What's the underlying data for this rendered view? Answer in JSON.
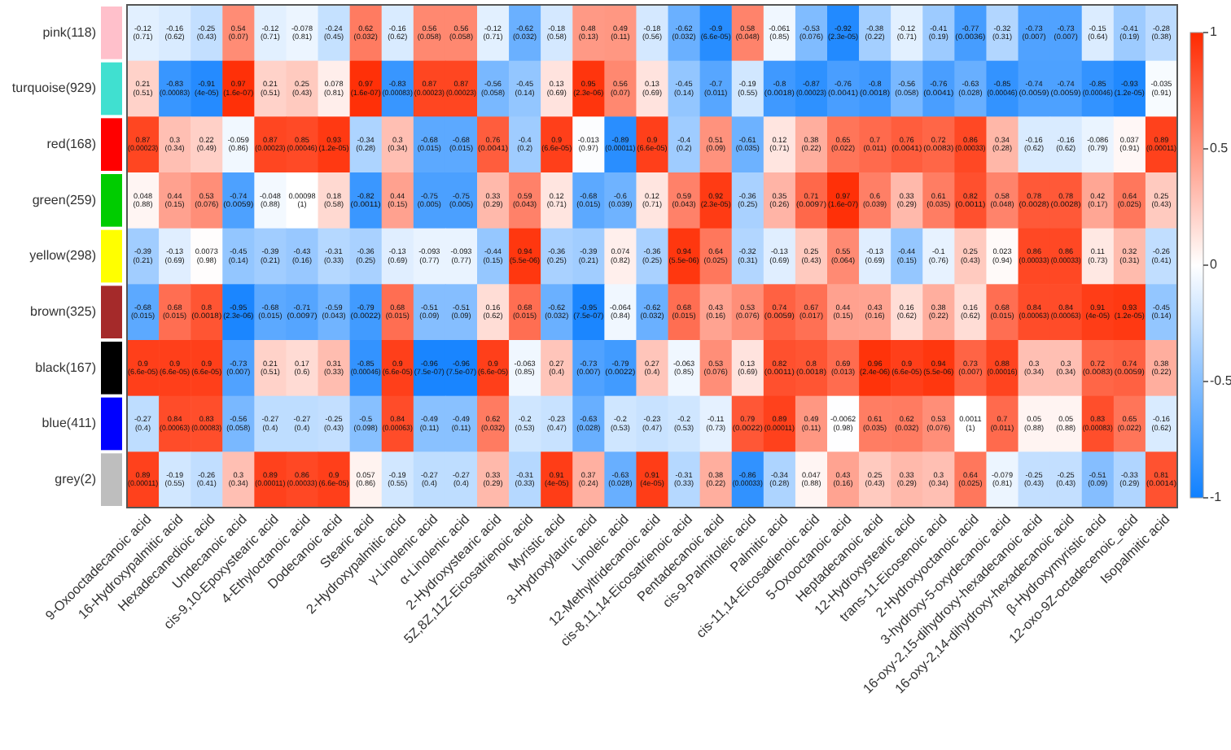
{
  "chart_data": {
    "type": "heatmap",
    "categories": [
      "9-Oxooctadecanoic acid",
      "16-Hydroxypalmitic acid",
      "Hexadecanedioic acid",
      "Undecanoic acid",
      "cis-9,10-Epoxystearic acid",
      "4-Ethyloctanoic acid",
      "Dodecanoic acid",
      "Stearic acid",
      "2-Hydroxypalmitic acid",
      "γ-Linolenic acid",
      "α-Linolenic acid",
      "2-Hydroxystearic acid",
      "5Z,8Z,11Z-Eicosatrienoic acid",
      "Myristic acid",
      "3-Hydroxylauric acid",
      "Linoleic acid",
      "12-Methyltridecanoic acid",
      "cis-8,11,14-Eicosatrienoic acid",
      "Pentadecanoic acid",
      "cis-9-Palmitoleic acid",
      "Palmitic acid",
      "cis-11,14-Eicosadienoic acid",
      "5-Oxooctanoic acid",
      "Heptadecanoic acid",
      "12-Hydroxystearic acid",
      "trans-11-Eicosenoic acid",
      "2-Hydroxyoctanoic acid",
      "3-hydroxy-5-oxydecanoic acid",
      "16-oxy-2,15-dihydroxy-hexadecanoic acid",
      "16-oxy-2,14-dihydroxy-hexadecanoic acid",
      "β-Hydroxymyristic acid",
      "12-oxo-9Z-octadecenoic_acid",
      "Isopalmitic acid"
    ],
    "y_categories": [
      "pink(118)",
      "turquoise(929)",
      "red(168)",
      "green(259)",
      "yellow(298)",
      "brown(325)",
      "black(167)",
      "blue(411)",
      "grey(2)"
    ],
    "cells": [
      [
        -0.12,
        -0.16,
        -0.25,
        0.54,
        -0.12,
        -0.078,
        -0.24,
        0.62,
        -0.16,
        0.56,
        0.56,
        -0.12,
        -0.62,
        -0.18,
        0.48,
        0.49,
        -0.18,
        -0.62,
        -0.9,
        0.58,
        -0.061,
        -0.53,
        -0.92,
        -0.38,
        -0.12,
        -0.41,
        -0.77,
        -0.32,
        -0.73,
        -0.73,
        -0.15,
        -0.41,
        -0.28
      ],
      [
        0.21,
        -0.83,
        -0.91,
        0.97,
        0.21,
        0.25,
        0.078,
        0.97,
        -0.83,
        0.87,
        0.87,
        -0.56,
        -0.45,
        0.13,
        0.95,
        0.56,
        0.13,
        -0.45,
        -0.7,
        -0.19,
        -0.8,
        -0.87,
        -0.76,
        -0.8,
        -0.56,
        -0.76,
        -0.63,
        -0.85,
        -0.74,
        -0.74,
        -0.85,
        -0.93,
        -0.035
      ],
      [
        0.87,
        0.3,
        0.22,
        -0.059,
        0.87,
        0.85,
        0.93,
        -0.34,
        0.3,
        -0.68,
        -0.68,
        0.76,
        -0.4,
        0.9,
        -0.013,
        -0.89,
        0.9,
        -0.4,
        0.51,
        -0.61,
        0.12,
        0.38,
        0.65,
        0.7,
        0.76,
        0.72,
        0.86,
        0.34,
        -0.16,
        -0.16,
        -0.086,
        0.037,
        0.89
      ],
      [
        0.048,
        0.44,
        0.53,
        -0.74,
        -0.048,
        0.00098,
        0.18,
        -0.82,
        0.44,
        -0.75,
        -0.75,
        0.33,
        0.59,
        0.12,
        -0.68,
        -0.6,
        0.12,
        0.59,
        0.92,
        -0.36,
        0.35,
        0.71,
        0.97,
        0.6,
        0.33,
        0.61,
        0.82,
        0.58,
        0.78,
        0.78,
        0.42,
        0.64,
        0.25
      ],
      [
        -0.39,
        -0.13,
        0.0073,
        -0.45,
        -0.39,
        -0.43,
        -0.31,
        -0.36,
        -0.13,
        -0.093,
        -0.093,
        -0.44,
        0.94,
        -0.36,
        -0.39,
        0.074,
        -0.36,
        0.94,
        0.64,
        -0.32,
        -0.13,
        0.25,
        0.55,
        -0.13,
        -0.44,
        -0.1,
        0.25,
        0.023,
        0.86,
        0.86,
        0.11,
        0.32,
        -0.26
      ],
      [
        -0.68,
        0.68,
        0.8,
        -0.95,
        -0.68,
        -0.71,
        -0.59,
        -0.79,
        0.68,
        -0.51,
        -0.51,
        0.16,
        0.68,
        -0.62,
        -0.95,
        -0.064,
        -0.62,
        0.68,
        0.43,
        0.53,
        0.74,
        0.67,
        0.44,
        0.43,
        0.16,
        0.38,
        0.16,
        0.68,
        0.84,
        0.84,
        0.91,
        0.93,
        -0.45
      ],
      [
        0.9,
        0.9,
        0.9,
        -0.73,
        0.21,
        0.17,
        0.31,
        -0.85,
        0.9,
        -0.96,
        -0.96,
        0.9,
        -0.063,
        0.27,
        -0.73,
        -0.79,
        0.27,
        -0.063,
        0.53,
        0.13,
        0.82,
        0.8,
        0.69,
        0.96,
        0.9,
        0.94,
        0.73,
        0.88,
        0.3,
        0.3,
        0.72,
        0.74,
        0.38
      ],
      [
        -0.27,
        0.84,
        0.83,
        -0.56,
        -0.27,
        -0.27,
        -0.25,
        -0.5,
        0.84,
        -0.49,
        -0.49,
        0.62,
        -0.2,
        -0.23,
        -0.63,
        -0.2,
        -0.23,
        -0.2,
        -0.11,
        0.79,
        0.89,
        0.49,
        -0.0062,
        0.61,
        0.62,
        0.53,
        0.0011,
        0.7,
        0.05,
        0.05,
        0.83,
        0.65,
        -0.16
      ],
      [
        0.89,
        -0.19,
        -0.26,
        0.3,
        0.89,
        0.86,
        0.9,
        0.057,
        -0.19,
        -0.27,
        -0.27,
        0.33,
        -0.31,
        0.91,
        0.37,
        -0.63,
        0.91,
        -0.31,
        0.38,
        -0.86,
        -0.34,
        0.047,
        0.43,
        0.25,
        0.33,
        0.3,
        0.64,
        -0.079,
        -0.25,
        -0.25,
        -0.51,
        -0.33,
        0.81
      ]
    ],
    "cell_labels": [
      [
        "-0.12\n(0.71)",
        "-0.16\n(0.62)",
        "-0.25\n(0.43)",
        "0.54\n(0.07)",
        "-0.12\n(0.71)",
        "-0.078\n(0.81)",
        "-0.24\n(0.45)",
        "0.62\n(0.032)",
        "-0.16\n(0.62)",
        "0.56\n(0.058)",
        "0.56\n(0.058)",
        "-0.12\n(0.71)",
        "-0.62\n(0.032)",
        "-0.18\n(0.58)",
        "0.48\n(0.13)",
        "0.49\n(0.11)",
        "-0.18\n(0.56)",
        "-0.62\n(0.032)",
        "-0.9\n(6.6e-05)",
        "0.58\n(0.048)",
        "-0.061\n(0.85)",
        "-0.53\n(0.076)",
        "-0.92\n(2.3e-05)",
        "-0.38\n(0.22)",
        "-0.12\n(0.71)",
        "-0.41\n(0.19)",
        "-0.77\n(0.0036)",
        "-0.32\n(0.31)",
        "-0.73\n(0.007)",
        "-0.73\n(0.007)",
        "-0.15\n(0.64)",
        "-0.41\n(0.19)",
        "-0.28\n(0.38)"
      ],
      [
        "0.21\n(0.51)",
        "-0.83\n(0.00083)",
        "-0.91\n(4e-05)",
        "0.97\n(1.6e-07)",
        "0.21\n(0.51)",
        "0.25\n(0.43)",
        "0.078\n(0.81)",
        "0.97\n(1.6e-07)",
        "-0.83\n(0.00083)",
        "0.87\n(0.00023)",
        "0.87\n(0.00023)",
        "-0.56\n(0.058)",
        "-0.45\n(0.14)",
        "0.13\n(0.69)",
        "0.95\n(2.3e-06)",
        "0.56\n(0.07)",
        "0.13\n(0.69)",
        "-0.45\n(0.14)",
        "-0.7\n(0.011)",
        "-0.19\n(0.55)",
        "-0.8\n(0.0018)",
        "-0.87\n(0.00023)",
        "-0.76\n(0.0041)",
        "-0.8\n(0.0018)",
        "-0.56\n(0.058)",
        "-0.76\n(0.0041)",
        "-0.63\n(0.028)",
        "-0.85\n(0.00046)",
        "-0.74\n(0.0059)",
        "-0.74\n(0.0059)",
        "-0.85\n(0.00046)",
        "-0.93\n(1.2e-05)",
        "-0.035\n(0.91)"
      ],
      [
        "0.87\n(0.00023)",
        "0.3\n(0.34)",
        "0.22\n(0.49)",
        "-0.059\n(0.86)",
        "0.87\n(0.00023)",
        "0.85\n(0.00046)",
        "0.93\n(1.2e-05)",
        "-0.34\n(0.28)",
        "0.3\n(0.34)",
        "-0.68\n(0.015)",
        "-0.68\n(0.015)",
        "0.76\n(0.0041)",
        "-0.4\n(0.2)",
        "0.9\n(6.6e-05)",
        "-0.013\n(0.97)",
        "-0.89\n(0.00011)",
        "0.9\n(6.6e-05)",
        "-0.4\n(0.2)",
        "0.51\n(0.09)",
        "-0.61\n(0.035)",
        "0.12\n(0.71)",
        "0.38\n(0.22)",
        "0.65\n(0.022)",
        "0.7\n(0.011)",
        "0.76\n(0.0041)",
        "0.72\n(0.0083)",
        "0.86\n(0.00033)",
        "0.34\n(0.28)",
        "-0.16\n(0.62)",
        "-0.16\n(0.62)",
        "-0.086\n(0.79)",
        "0.037\n(0.91)",
        "0.89\n(0.00011)"
      ],
      [
        "0.048\n(0.88)",
        "0.44\n(0.15)",
        "0.53\n(0.076)",
        "-0.74\n(0.0059)",
        "-0.048\n(0.88)",
        "0.00098\n(1)",
        "0.18\n(0.58)",
        "-0.82\n(0.0011)",
        "0.44\n(0.15)",
        "-0.75\n(0.005)",
        "-0.75\n(0.005)",
        "0.33\n(0.29)",
        "0.59\n(0.043)",
        "0.12\n(0.71)",
        "-0.68\n(0.015)",
        "-0.6\n(0.039)",
        "0.12\n(0.71)",
        "0.59\n(0.043)",
        "0.92\n(2.3e-05)",
        "-0.36\n(0.25)",
        "0.35\n(0.26)",
        "0.71\n(0.0097)",
        "0.97\n(1.6e-07)",
        "0.6\n(0.039)",
        "0.33\n(0.29)",
        "0.61\n(0.035)",
        "0.82\n(0.0011)",
        "0.58\n(0.048)",
        "0.78\n(0.0028)",
        "0.78\n(0.0028)",
        "0.42\n(0.17)",
        "0.64\n(0.025)",
        "0.25\n(0.43)"
      ],
      [
        "-0.39\n(0.21)",
        "-0.13\n(0.69)",
        "0.0073\n(0.98)",
        "-0.45\n(0.14)",
        "-0.39\n(0.21)",
        "-0.43\n(0.16)",
        "-0.31\n(0.33)",
        "-0.36\n(0.25)",
        "-0.13\n(0.69)",
        "-0.093\n(0.77)",
        "-0.093\n(0.77)",
        "-0.44\n(0.15)",
        "0.94\n(5.5e-06)",
        "-0.36\n(0.25)",
        "-0.39\n(0.21)",
        "0.074\n(0.82)",
        "-0.36\n(0.25)",
        "0.94\n(5.5e-06)",
        "0.64\n(0.025)",
        "-0.32\n(0.31)",
        "-0.13\n(0.69)",
        "0.25\n(0.43)",
        "0.55\n(0.064)",
        "-0.13\n(0.69)",
        "-0.44\n(0.15)",
        "-0.1\n(0.76)",
        "0.25\n(0.43)",
        "0.023\n(0.94)",
        "0.86\n(0.00033)",
        "0.86\n(0.00033)",
        "0.11\n(0.73)",
        "0.32\n(0.31)",
        "-0.26\n(0.41)"
      ],
      [
        "-0.68\n(0.015)",
        "0.68\n(0.015)",
        "0.8\n(0.0018)",
        "-0.95\n(2.3e-06)",
        "-0.68\n(0.015)",
        "-0.71\n(0.0097)",
        "-0.59\n(0.043)",
        "-0.79\n(0.0022)",
        "0.68\n(0.015)",
        "-0.51\n(0.09)",
        "-0.51\n(0.09)",
        "0.16\n(0.62)",
        "0.68\n(0.015)",
        "-0.62\n(0.032)",
        "-0.95\n(7.5e-07)",
        "-0.064\n(0.84)",
        "-0.62\n(0.032)",
        "0.68\n(0.015)",
        "0.43\n(0.16)",
        "0.53\n(0.076)",
        "0.74\n(0.0059)",
        "0.67\n(0.017)",
        "0.44\n(0.15)",
        "0.43\n(0.16)",
        "0.16\n(0.62)",
        "0.38\n(0.22)",
        "0.16\n(0.62)",
        "0.68\n(0.015)",
        "0.84\n(0.00063)",
        "0.84\n(0.00063)",
        "0.91\n(4e-05)",
        "0.93\n(1.2e-05)",
        "-0.45\n(0.14)"
      ],
      [
        "0.9\n(6.6e-05)",
        "0.9\n(6.6e-05)",
        "0.9\n(6.6e-05)",
        "-0.73\n(0.007)",
        "0.21\n(0.51)",
        "0.17\n(0.6)",
        "0.31\n(0.33)",
        "-0.85\n(0.00046)",
        "0.9\n(6.6e-05)",
        "-0.96\n(7.5e-07)",
        "-0.96\n(7.5e-07)",
        "0.9\n(6.6e-05)",
        "-0.063\n(0.85)",
        "0.27\n(0.4)",
        "-0.73\n(0.007)",
        "-0.79\n(0.0022)",
        "0.27\n(0.4)",
        "-0.063\n(0.85)",
        "0.53\n(0.076)",
        "0.13\n(0.69)",
        "0.82\n(0.0011)",
        "0.8\n(0.0018)",
        "0.69\n(0.013)",
        "0.96\n(2.4e-06)",
        "0.9\n(6.6e-05)",
        "0.94\n(5.5e-06)",
        "0.73\n(0.007)",
        "0.88\n(0.00016)",
        "0.3\n(0.34)",
        "0.3\n(0.34)",
        "0.72\n(0.0083)",
        "0.74\n(0.0059)",
        "0.38\n(0.22)"
      ],
      [
        "-0.27\n(0.4)",
        "0.84\n(0.00063)",
        "0.83\n(0.00083)",
        "-0.56\n(0.058)",
        "-0.27\n(0.4)",
        "-0.27\n(0.4)",
        "-0.25\n(0.43)",
        "-0.5\n(0.098)",
        "0.84\n(0.00063)",
        "-0.49\n(0.11)",
        "-0.49\n(0.11)",
        "0.62\n(0.032)",
        "-0.2\n(0.53)",
        "-0.23\n(0.47)",
        "-0.63\n(0.028)",
        "-0.2\n(0.53)",
        "-0.23\n(0.47)",
        "-0.2\n(0.53)",
        "-0.11\n(0.73)",
        "0.79\n(0.0022)",
        "0.89\n(0.00011)",
        "0.49\n(0.11)",
        "-0.0062\n(0.98)",
        "0.61\n(0.035)",
        "0.62\n(0.032)",
        "0.53\n(0.076)",
        "0.0011\n(1)",
        "0.7\n(0.011)",
        "0.05\n(0.88)",
        "0.05\n(0.88)",
        "0.83\n(0.00083)",
        "0.65\n(0.022)",
        "-0.16\n(0.62)"
      ],
      [
        "0.89\n(0.00011)",
        "-0.19\n(0.55)",
        "-0.26\n(0.41)",
        "0.3\n(0.34)",
        "0.89\n(0.00011)",
        "0.86\n(0.00033)",
        "0.9\n(6.6e-05)",
        "0.057\n(0.86)",
        "-0.19\n(0.55)",
        "-0.27\n(0.4)",
        "-0.27\n(0.4)",
        "0.33\n(0.29)",
        "-0.31\n(0.33)",
        "0.91\n(4e-05)",
        "0.37\n(0.24)",
        "-0.63\n(0.028)",
        "0.91\n(4e-05)",
        "-0.31\n(0.33)",
        "0.38\n(0.22)",
        "-0.86\n(0.00033)",
        "-0.34\n(0.28)",
        "0.047\n(0.88)",
        "0.43\n(0.16)",
        "0.25\n(0.43)",
        "0.33\n(0.29)",
        "0.3\n(0.34)",
        "0.64\n(0.025)",
        "-0.079\n(0.81)",
        "-0.25\n(0.43)",
        "-0.25\n(0.43)",
        "-0.51\n(0.09)",
        "-0.33\n(0.29)",
        "0.81\n(0.0014)"
      ]
    ],
    "clim": [
      -1,
      1
    ],
    "cticks": [
      -1,
      -0.5,
      0,
      0.5,
      1
    ]
  }
}
